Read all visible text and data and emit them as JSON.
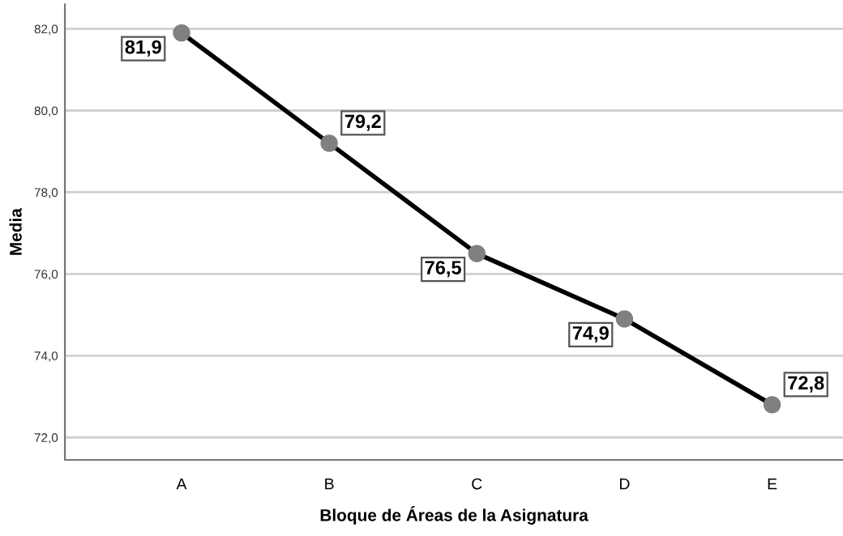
{
  "chart_data": {
    "type": "line",
    "xlabel": "Bloque de Áreas de la Asignatura",
    "ylabel": "Media",
    "categories": [
      "A",
      "B",
      "C",
      "D",
      "E"
    ],
    "series": [
      {
        "color": "#000000",
        "values": [
          81.9,
          79.2,
          76.5,
          74.9,
          72.8
        ],
        "value_labels": [
          "81,9",
          "79,2",
          "76,5",
          "74,9",
          "72,8"
        ]
      }
    ],
    "ylim": [
      71.45,
      82.6
    ],
    "yticks": [
      {
        "value": 72,
        "label": "72,0"
      },
      {
        "value": 74,
        "label": "74,0"
      },
      {
        "value": 76,
        "label": "76,0"
      },
      {
        "value": 78,
        "label": "78,0"
      },
      {
        "value": 80,
        "label": "80,0"
      },
      {
        "value": 82,
        "label": "82,0"
      }
    ],
    "grid": "y",
    "marker": "circle",
    "line_style": "solid"
  }
}
